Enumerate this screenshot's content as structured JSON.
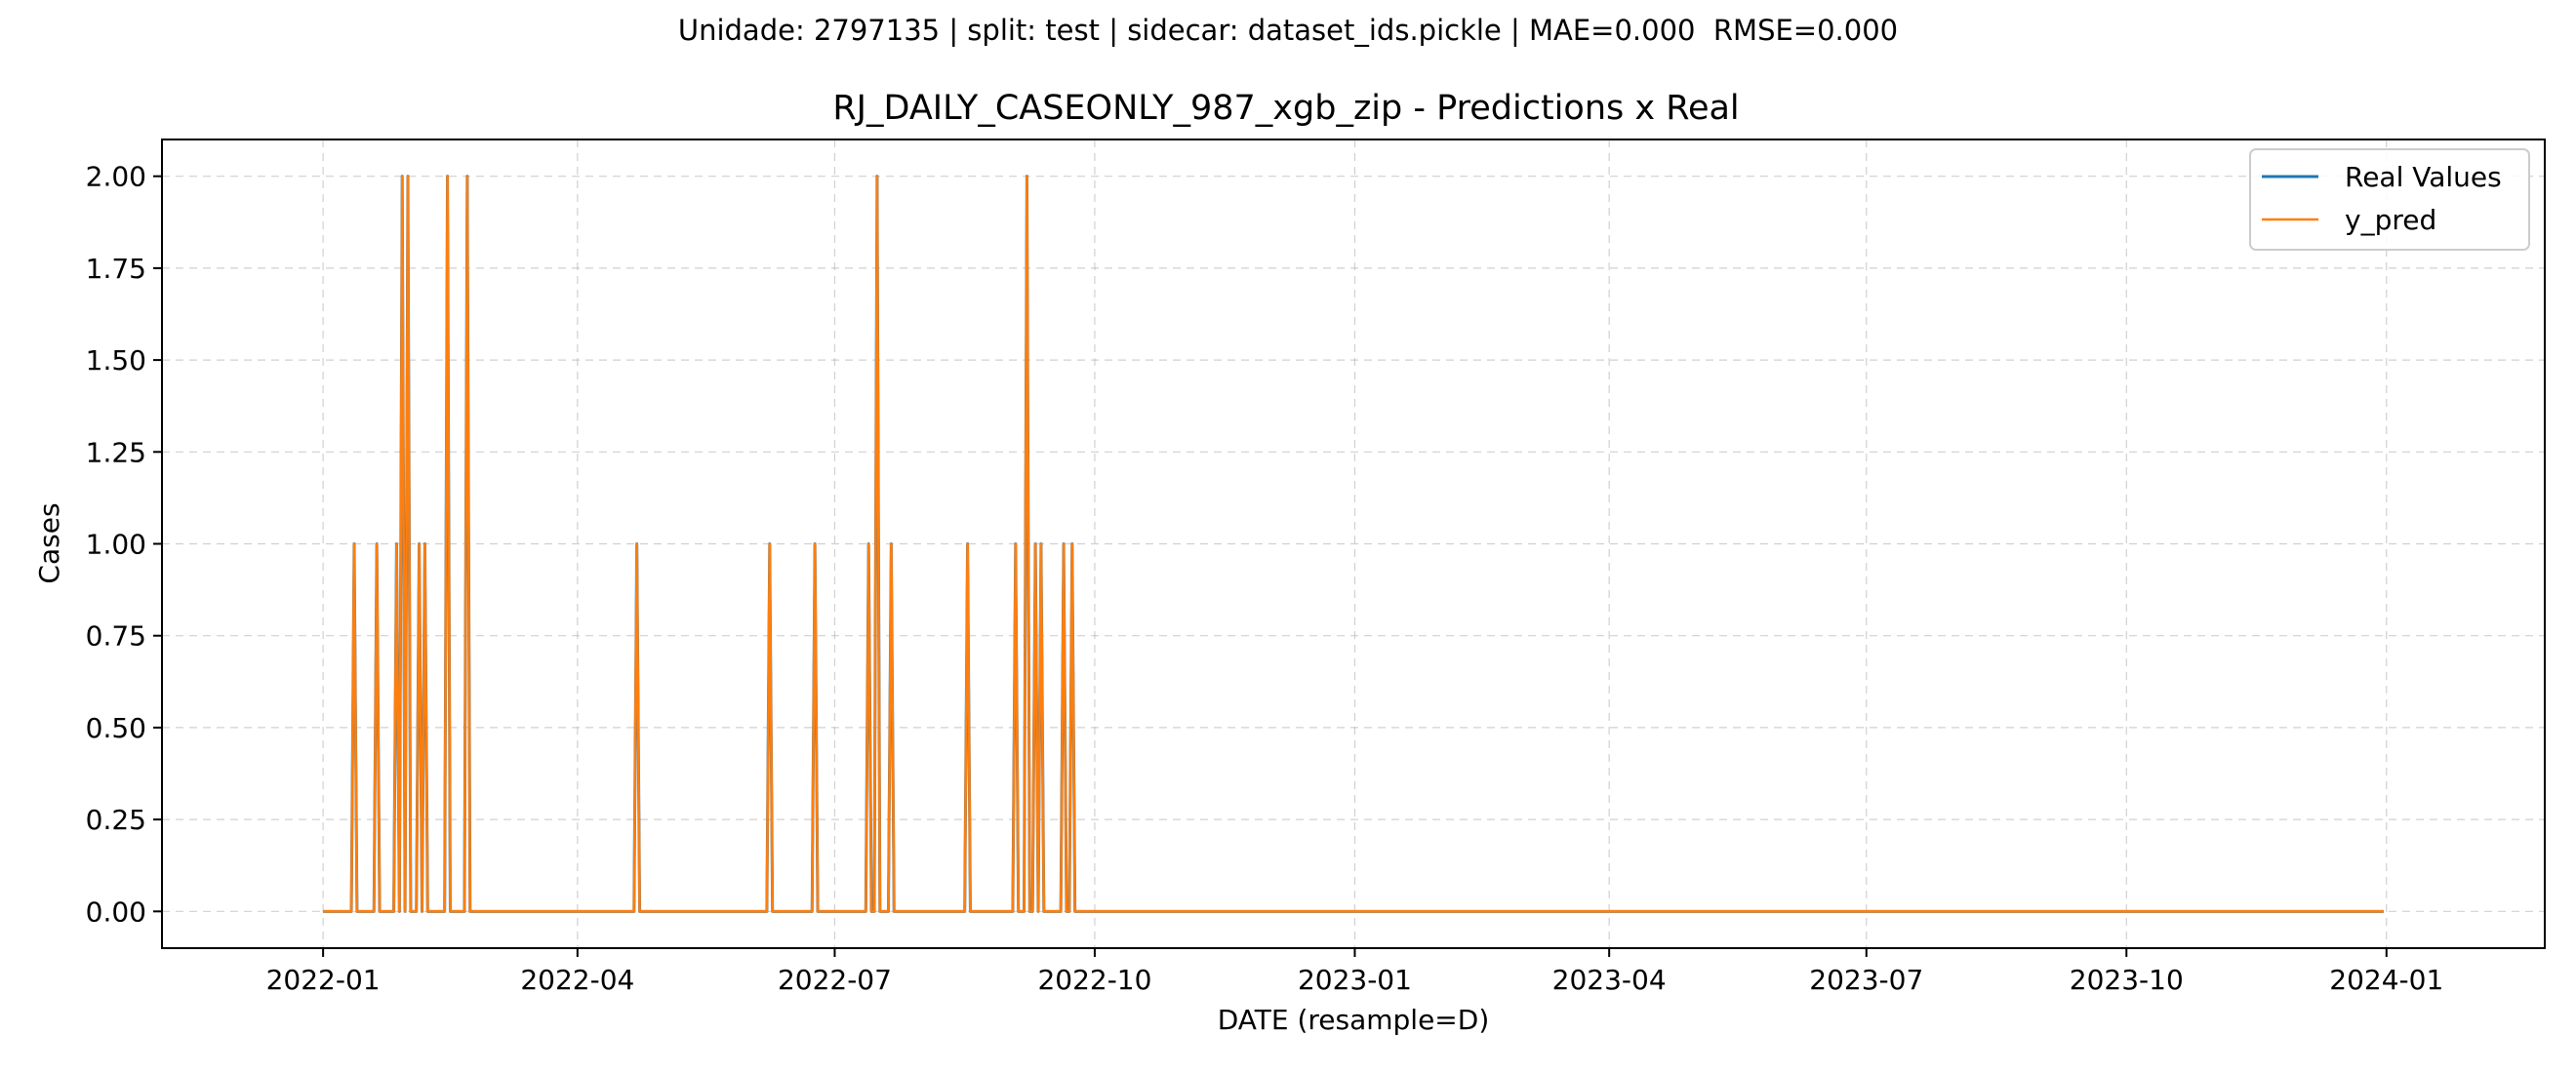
{
  "figure": {
    "suptitle": "Unidade: 2797135 | split: test | sidecar: dataset_ids.pickle | MAE=0.000  RMSE=0.000"
  },
  "chart_data": {
    "type": "line",
    "title": "RJ_DAILY_CASEONLY_987_xgb_zip - Predictions x Real",
    "xlabel": "DATE (resample=D)",
    "ylabel": "Cases",
    "x_type": "date",
    "xlim": [
      "2021-11-05",
      "2024-02-26"
    ],
    "ylim": [
      -0.1,
      2.1
    ],
    "x_ticks": [
      "2022-01",
      "2022-04",
      "2022-07",
      "2022-10",
      "2023-01",
      "2023-04",
      "2023-07",
      "2023-10",
      "2024-01"
    ],
    "x_tick_dates": [
      "2022-01-01",
      "2022-04-01",
      "2022-07-01",
      "2022-10-01",
      "2023-01-01",
      "2023-04-01",
      "2023-07-01",
      "2023-10-01",
      "2024-01-01"
    ],
    "y_ticks": [
      0.0,
      0.25,
      0.5,
      0.75,
      1.0,
      1.25,
      1.5,
      1.75,
      2.0
    ],
    "y_tick_labels": [
      "0.00",
      "0.25",
      "0.50",
      "0.75",
      "1.00",
      "1.25",
      "1.50",
      "1.75",
      "2.00"
    ],
    "grid": true,
    "legend_position": "top-right",
    "x_range": [
      "2022-01-01",
      "2023-12-31"
    ],
    "baseline_value": 0,
    "nonzero_points": [
      {
        "date": "2022-01-12",
        "value": 1
      },
      {
        "date": "2022-01-20",
        "value": 1
      },
      {
        "date": "2022-01-27",
        "value": 1
      },
      {
        "date": "2022-01-29",
        "value": 2
      },
      {
        "date": "2022-01-31",
        "value": 2
      },
      {
        "date": "2022-02-04",
        "value": 1
      },
      {
        "date": "2022-02-06",
        "value": 1
      },
      {
        "date": "2022-02-14",
        "value": 2
      },
      {
        "date": "2022-02-21",
        "value": 2
      },
      {
        "date": "2022-04-22",
        "value": 1
      },
      {
        "date": "2022-06-08",
        "value": 1
      },
      {
        "date": "2022-06-24",
        "value": 1
      },
      {
        "date": "2022-07-13",
        "value": 1
      },
      {
        "date": "2022-07-16",
        "value": 2
      },
      {
        "date": "2022-07-21",
        "value": 1
      },
      {
        "date": "2022-08-17",
        "value": 1
      },
      {
        "date": "2022-09-03",
        "value": 1
      },
      {
        "date": "2022-09-07",
        "value": 2
      },
      {
        "date": "2022-09-10",
        "value": 1
      },
      {
        "date": "2022-09-12",
        "value": 1
      },
      {
        "date": "2022-09-20",
        "value": 1
      },
      {
        "date": "2022-09-23",
        "value": 1
      }
    ],
    "series": [
      {
        "name": "Real Values",
        "color": "#1f77b4"
      },
      {
        "name": "y_pred",
        "color": "#ff7f0e"
      }
    ]
  }
}
